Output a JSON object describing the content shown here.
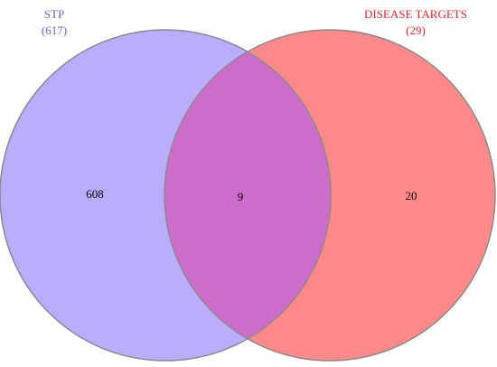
{
  "sets": [
    {
      "name": "STP",
      "count": "(617)",
      "only": "608"
    },
    {
      "name": "DISEASE TARGETS",
      "count": "(29)",
      "only": "20"
    }
  ],
  "intersection": "9"
}
